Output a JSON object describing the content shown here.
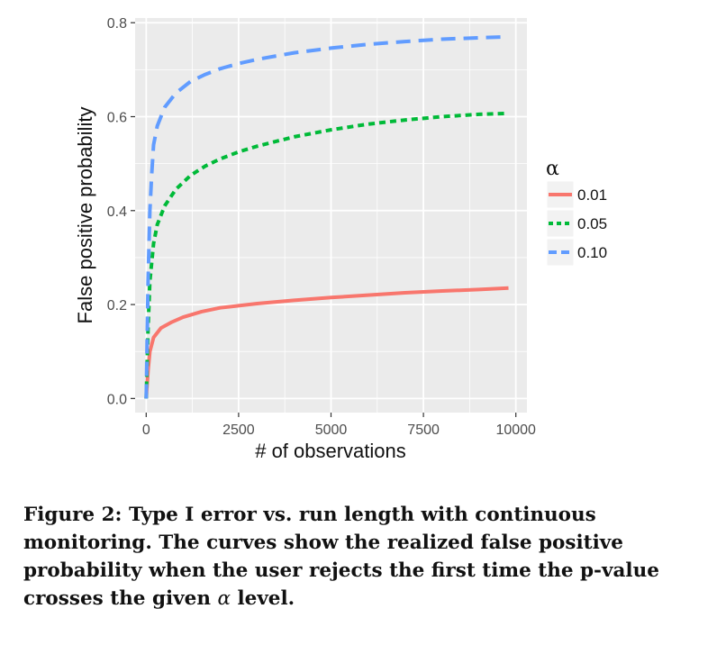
{
  "caption": {
    "text_before_alpha": "Figure 2: Type I error vs. run length with continuous monitoring. The curves show the realized false positive probability when the user rejects the first time the p-value crosses the given ",
    "alpha_symbol": "α",
    "text_after_alpha": " level."
  },
  "colors": {
    "panel_background": "#ebebeb",
    "grid_line": "#ffffff",
    "series_0.01": "#f8766d",
    "series_0.05": "#00ba38",
    "series_0.10": "#619cff"
  },
  "chart_data": {
    "type": "line",
    "title": "",
    "xlabel": "# of observations",
    "ylabel": "False positive probability",
    "xlim": [
      -300,
      10300
    ],
    "ylim": [
      -0.03,
      0.81
    ],
    "x_ticks": [
      0,
      2500,
      5000,
      7500,
      10000
    ],
    "x_tick_labels": [
      "0",
      "2500",
      "5000",
      "7500",
      "10000"
    ],
    "y_ticks": [
      0.0,
      0.2,
      0.4,
      0.6,
      0.8
    ],
    "y_tick_labels": [
      "0.0",
      "0.2",
      "0.4",
      "0.6",
      "0.8"
    ],
    "grid": true,
    "legend": {
      "title": "α",
      "position": "right"
    },
    "series": [
      {
        "name": "0.01",
        "line_style": "solid",
        "color": "#f8766d",
        "x": [
          0,
          50,
          100,
          200,
          400,
          700,
          1000,
          1500,
          2000,
          3000,
          4000,
          5000,
          6000,
          7000,
          8000,
          9000,
          9800
        ],
        "y": [
          0,
          0.06,
          0.1,
          0.13,
          0.15,
          0.163,
          0.173,
          0.185,
          0.193,
          0.202,
          0.209,
          0.215,
          0.22,
          0.225,
          0.229,
          0.232,
          0.235
        ]
      },
      {
        "name": "0.05",
        "line_style": "dotted",
        "color": "#00ba38",
        "x": [
          0,
          50,
          100,
          200,
          300,
          500,
          800,
          1200,
          1600,
          2000,
          2500,
          3000,
          4000,
          5000,
          6000,
          7000,
          8000,
          9000,
          9800
        ],
        "y": [
          0,
          0.15,
          0.25,
          0.33,
          0.37,
          0.41,
          0.445,
          0.475,
          0.495,
          0.51,
          0.525,
          0.537,
          0.557,
          0.572,
          0.584,
          0.593,
          0.6,
          0.605,
          0.607
        ]
      },
      {
        "name": "0.10",
        "line_style": "dashed",
        "color": "#619cff",
        "x": [
          0,
          50,
          100,
          150,
          200,
          300,
          500,
          800,
          1200,
          1600,
          2000,
          2500,
          3000,
          4000,
          5000,
          6000,
          7000,
          8000,
          9000,
          9800
        ],
        "y": [
          0,
          0.25,
          0.4,
          0.48,
          0.54,
          0.58,
          0.62,
          0.65,
          0.675,
          0.69,
          0.702,
          0.713,
          0.722,
          0.736,
          0.746,
          0.754,
          0.76,
          0.765,
          0.768,
          0.77
        ]
      }
    ]
  }
}
